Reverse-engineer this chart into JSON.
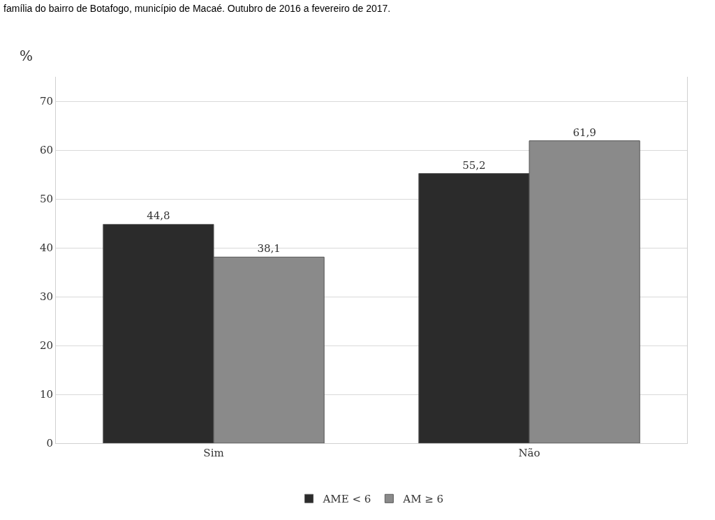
{
  "chart_data": {
    "type": "bar",
    "title": "família do bairro de Botafogo, município de Macaé. Outubro de 2016 a fevereiro de 2017.",
    "ylabel": "%",
    "categories": [
      "Sim",
      "Não"
    ],
    "series": [
      {
        "name": "AME < 6",
        "color": "#2b2b2b",
        "values": [
          44.8,
          55.2
        ],
        "value_labels": [
          "44,8",
          "55,2"
        ]
      },
      {
        "name": "AM ≥ 6",
        "color": "#8a8a8a",
        "values": [
          38.1,
          61.9
        ],
        "value_labels": [
          "38,1",
          "61,9"
        ]
      }
    ],
    "ylim": [
      0,
      75
    ],
    "yticks": [
      0,
      10,
      20,
      30,
      40,
      50,
      60,
      70
    ],
    "grid": "y",
    "legend": "bottom"
  }
}
